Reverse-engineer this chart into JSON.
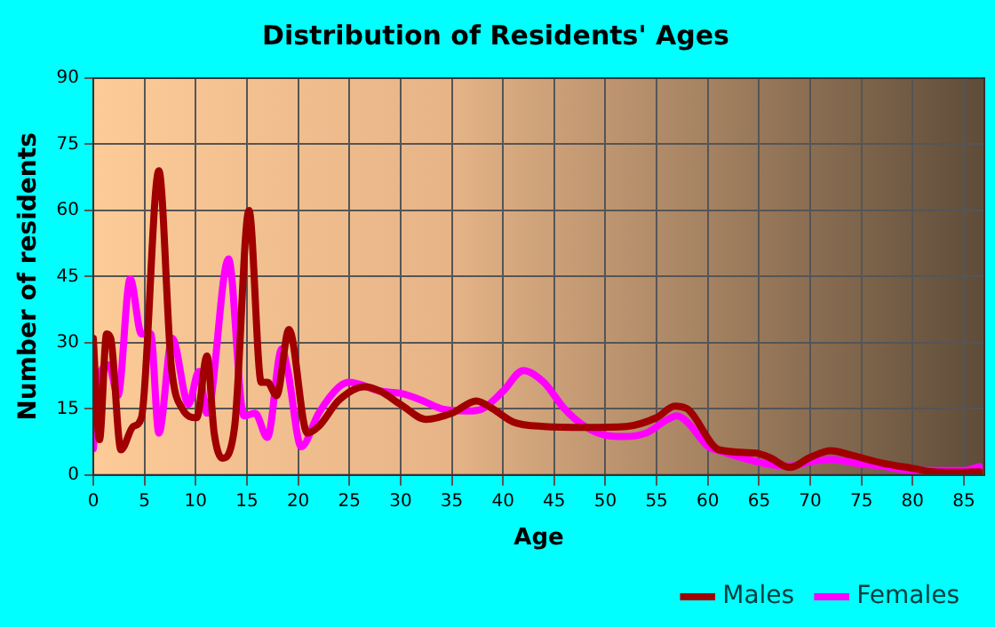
{
  "chart_data": {
    "type": "line",
    "title": "Distribution of Residents' Ages",
    "xlabel": "Age",
    "ylabel": "Number of residents",
    "xlim": [
      0,
      87
    ],
    "xticks": [
      0,
      5,
      10,
      15,
      20,
      25,
      30,
      35,
      40,
      45,
      50,
      55,
      60,
      65,
      70,
      75,
      80,
      85
    ],
    "ylim": [
      0,
      90
    ],
    "yticks": [
      0,
      15,
      30,
      45,
      60,
      75,
      90
    ],
    "grid": true,
    "legend": "bottom right",
    "marker": "none",
    "line_style": "solid",
    "series": [
      {
        "name": "Males",
        "color": "#a00000",
        "x": [
          0,
          0.6,
          1.3,
          1.7,
          2.7,
          3.9,
          4.7,
          6.4,
          7.6,
          8.7,
          10.1,
          11.1,
          11.8,
          12.6,
          13.8,
          15.2,
          16.4,
          17,
          17.9,
          19.1,
          20.9,
          22,
          24,
          26.5,
          28,
          30,
          32.5,
          35,
          37.4,
          39,
          41,
          44,
          48,
          52,
          55,
          56.8,
          58,
          61.1,
          64.6,
          66,
          68,
          70,
          72,
          74,
          77,
          80,
          82,
          84,
          86.5
        ],
        "values": [
          31,
          8,
          32,
          31,
          5.7,
          11,
          13,
          69,
          25,
          15,
          13,
          27,
          9.5,
          3.8,
          11,
          60,
          21,
          21,
          18,
          33,
          9.5,
          11,
          17,
          20,
          19,
          16,
          12.6,
          14,
          16.8,
          15,
          12,
          11,
          10.8,
          11,
          13,
          15.6,
          15,
          5.7,
          5,
          4,
          1.7,
          4,
          5.5,
          4.5,
          2.7,
          1.5,
          0.7,
          0.6,
          0.7
        ]
      },
      {
        "name": "Females",
        "color": "#ff00ff",
        "x": [
          0,
          0.7,
          1.5,
          2.4,
          3.6,
          4.7,
          5.6,
          6.4,
          7.7,
          9.3,
          10.3,
          11.1,
          13.2,
          14.7,
          15.8,
          17,
          18.4,
          19,
          20.3,
          22,
          24,
          25,
          28,
          30,
          32,
          34,
          36.6,
          38,
          40,
          42,
          44,
          46,
          48,
          50,
          51.8,
          54,
          56,
          57,
          58,
          60,
          61.1,
          64.6,
          66,
          68,
          70,
          72,
          75,
          77,
          80,
          82,
          85,
          86.5
        ],
        "values": [
          6,
          23,
          25,
          18,
          44.5,
          32,
          32,
          9.5,
          31,
          16,
          23.5,
          14,
          49,
          13.4,
          14,
          8.5,
          28.6,
          23.5,
          6.4,
          14,
          20,
          21,
          19,
          18.5,
          17,
          15,
          14.5,
          15,
          19,
          23.7,
          21,
          15,
          11,
          9,
          8.7,
          9.5,
          12.5,
          13.4,
          12,
          6.5,
          5.5,
          null,
          null,
          2,
          3,
          3.5,
          2.5,
          2,
          1,
          null,
          1,
          1.9
        ]
      }
    ]
  }
}
